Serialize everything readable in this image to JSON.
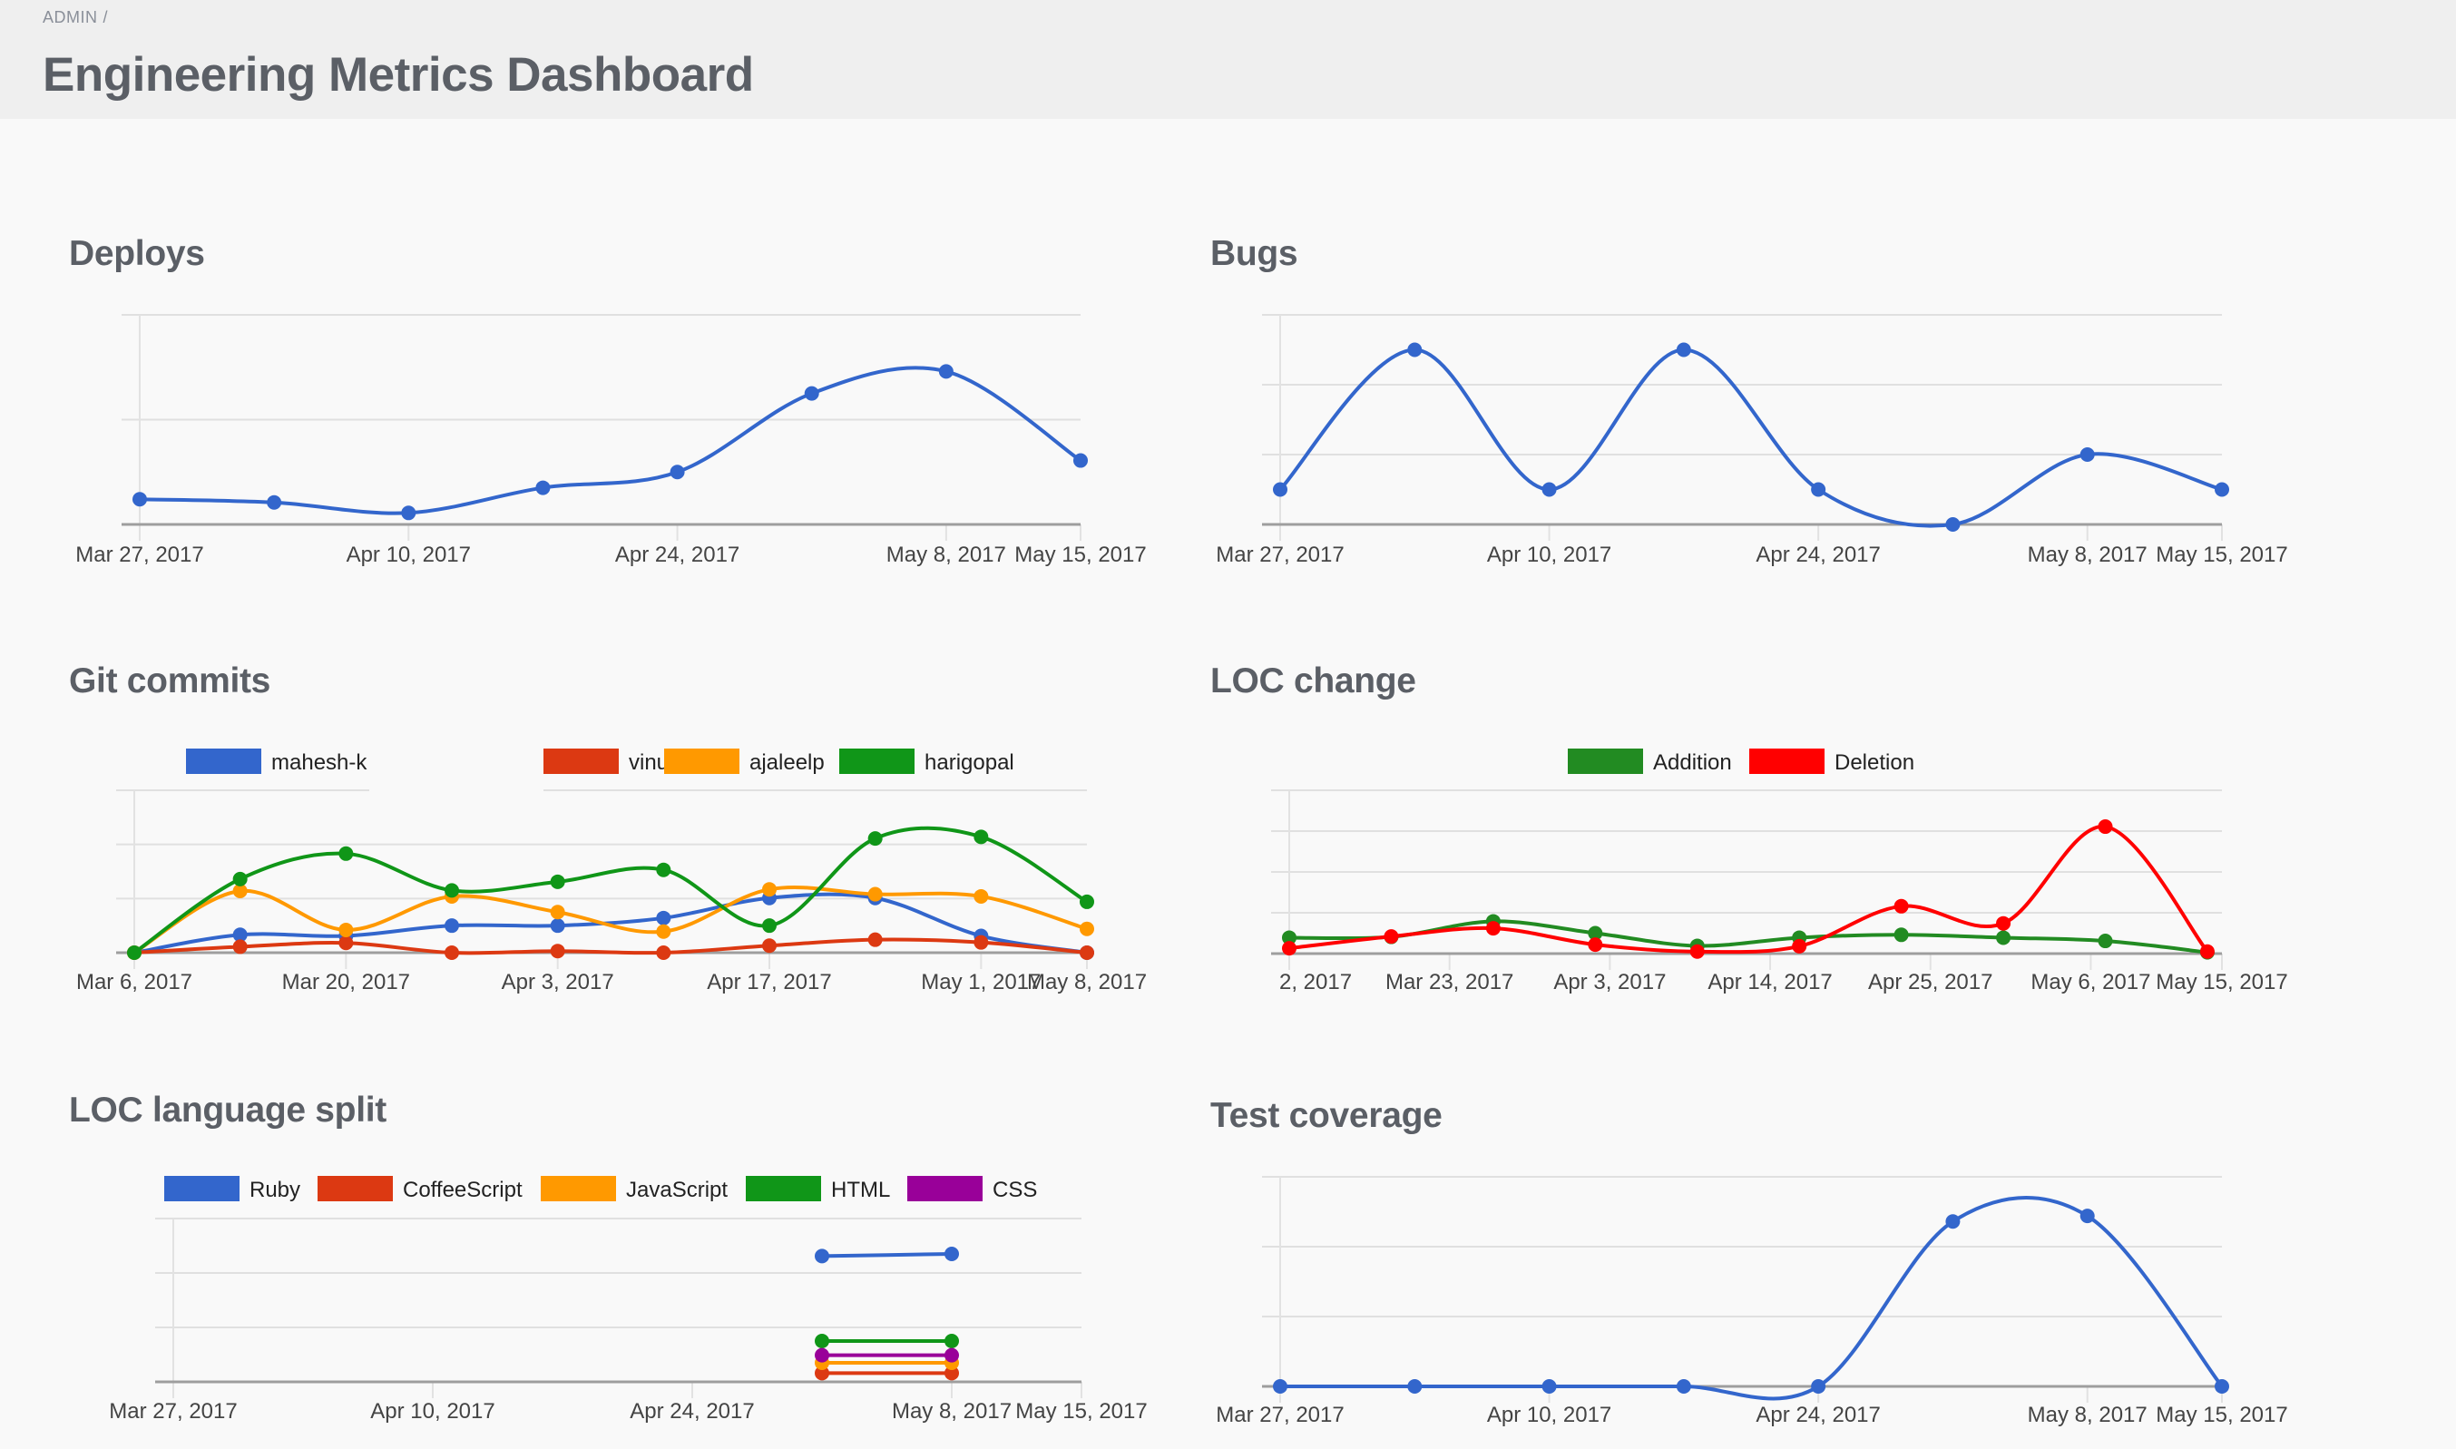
{
  "breadcrumb": {
    "items": [
      "ADMIN"
    ],
    "separator": "/"
  },
  "page_title": "Engineering Metrics Dashboard",
  "chart_data": [
    {
      "id": "deploys",
      "title": "Deploys",
      "type": "line",
      "curve": "smooth",
      "x_range": [
        "2017-03-27",
        "2017-05-15"
      ],
      "ylim": [
        0,
        2
      ],
      "ygrid_step": 1,
      "grid": true,
      "xticks": [
        {
          "date": "2017-03-27",
          "label": "Mar 27, 2017"
        },
        {
          "date": "2017-04-10",
          "label": "Apr 10, 2017"
        },
        {
          "date": "2017-04-24",
          "label": "Apr 24, 2017"
        },
        {
          "date": "2017-05-08",
          "label": "May 8, 2017"
        },
        {
          "date": "2017-05-15",
          "label": "May 15, 2017"
        }
      ],
      "x": [
        "2017-03-27",
        "2017-04-03",
        "2017-04-10",
        "2017-04-17",
        "2017-04-24",
        "2017-05-01",
        "2017-05-08",
        "2017-05-15"
      ],
      "series": [
        {
          "color": "#3366cc",
          "values": [
            0.24,
            0.21,
            0.11,
            0.35,
            0.5,
            1.25,
            1.46,
            0.61
          ]
        }
      ]
    },
    {
      "id": "bugs",
      "title": "Bugs",
      "type": "line",
      "curve": "smooth",
      "x_range": [
        "2017-03-27",
        "2017-05-15"
      ],
      "ylim": [
        0,
        6
      ],
      "ygrid_step": 2,
      "grid": true,
      "xticks": [
        {
          "date": "2017-03-27",
          "label": "Mar 27, 2017"
        },
        {
          "date": "2017-04-10",
          "label": "Apr 10, 2017"
        },
        {
          "date": "2017-04-24",
          "label": "Apr 24, 2017"
        },
        {
          "date": "2017-05-08",
          "label": "May 8, 2017"
        },
        {
          "date": "2017-05-15",
          "label": "May 15, 2017"
        }
      ],
      "x": [
        "2017-03-27",
        "2017-04-03",
        "2017-04-10",
        "2017-04-17",
        "2017-04-24",
        "2017-05-01",
        "2017-05-08",
        "2017-05-15"
      ],
      "series": [
        {
          "color": "#3366cc",
          "values": [
            1,
            5,
            1,
            5,
            1,
            0,
            2,
            1
          ]
        }
      ]
    },
    {
      "id": "git",
      "title": "Git commits",
      "type": "line",
      "curve": "smooth",
      "x_range": [
        "2017-03-06",
        "2017-05-08"
      ],
      "ylim": [
        0,
        3
      ],
      "ygrid_step": 1,
      "grid": true,
      "legend": "top",
      "xticks": [
        {
          "date": "2017-03-06",
          "label": "Mar 6, 2017"
        },
        {
          "date": "2017-03-20",
          "label": "Mar 20, 2017"
        },
        {
          "date": "2017-04-03",
          "label": "Apr 3, 2017"
        },
        {
          "date": "2017-04-17",
          "label": "Apr 17, 2017"
        },
        {
          "date": "2017-05-01",
          "label": "May 1, 2017"
        },
        {
          "date": "2017-05-08",
          "label": "May 8, 2017"
        }
      ],
      "x": [
        "2017-03-06",
        "2017-03-13",
        "2017-03-20",
        "2017-03-27",
        "2017-04-03",
        "2017-04-10",
        "2017-04-17",
        "2017-04-24",
        "2017-05-01",
        "2017-05-08"
      ],
      "series": [
        {
          "name": "mahesh-k",
          "color": "#3366cc",
          "values": [
            0,
            0.33,
            0.31,
            0.5,
            0.5,
            0.64,
            1.01,
            1.01,
            0.31,
            0
          ]
        },
        {
          "name": "vinutv",
          "color": "#dc3912",
          "values": [
            0,
            0.11,
            0.18,
            0,
            0.03,
            0,
            0.13,
            0.24,
            0.19,
            0
          ]
        },
        {
          "name": "ajaleelp",
          "color": "#ff9900",
          "values": [
            0,
            1.14,
            0.42,
            1.04,
            0.75,
            0.39,
            1.17,
            1.08,
            1.04,
            0.44
          ]
        },
        {
          "name": "harigopal",
          "color": "#109618",
          "values": [
            0,
            1.36,
            1.83,
            1.15,
            1.31,
            1.53,
            0.5,
            2.11,
            2.14,
            0.94
          ]
        }
      ]
    },
    {
      "id": "loc",
      "title": "LOC change",
      "type": "line",
      "curve": "smooth",
      "x_range": [
        "2017-03-12",
        "2017-05-15"
      ],
      "ylim": [
        0,
        4
      ],
      "ygrid_step": 1,
      "grid": true,
      "legend": "top",
      "xticks": [
        {
          "date": "2017-03-12",
          "label": "2, 2017"
        },
        {
          "date": "2017-03-23",
          "label": "Mar 23, 2017"
        },
        {
          "date": "2017-04-03",
          "label": "Apr 3, 2017"
        },
        {
          "date": "2017-04-14",
          "label": "Apr 14, 2017"
        },
        {
          "date": "2017-04-25",
          "label": "Apr 25, 2017"
        },
        {
          "date": "2017-05-06",
          "label": "May 6, 2017"
        },
        {
          "date": "2017-05-15",
          "label": "May 15, 2017"
        }
      ],
      "x": [
        "2017-03-12",
        "2017-03-19",
        "2017-03-26",
        "2017-04-02",
        "2017-04-09",
        "2017-04-16",
        "2017-04-23",
        "2017-04-30",
        "2017-05-07",
        "2017-05-14"
      ],
      "series": [
        {
          "name": "Addition",
          "color": "#228b22",
          "values": [
            0.39,
            0.41,
            0.79,
            0.5,
            0.19,
            0.39,
            0.46,
            0.39,
            0.31,
            0.03
          ]
        },
        {
          "name": "Deletion",
          "color": "#ff0000",
          "values": [
            0.13,
            0.42,
            0.62,
            0.22,
            0.05,
            0.18,
            1.16,
            0.74,
            3.11,
            0.05
          ]
        }
      ]
    },
    {
      "id": "lang",
      "title": "LOC language split",
      "type": "line",
      "curve": "smooth",
      "x_range": [
        "2017-03-27",
        "2017-05-15"
      ],
      "ylim": [
        0,
        3
      ],
      "ygrid_step": 1,
      "grid": true,
      "legend": "top",
      "xticks": [
        {
          "date": "2017-03-27",
          "label": "Mar 27, 2017"
        },
        {
          "date": "2017-04-10",
          "label": "Apr 10, 2017"
        },
        {
          "date": "2017-04-24",
          "label": "Apr 24, 2017"
        },
        {
          "date": "2017-05-08",
          "label": "May 8, 2017"
        },
        {
          "date": "2017-05-15",
          "label": "May 15, 2017"
        }
      ],
      "x": [
        "2017-05-01",
        "2017-05-08"
      ],
      "series": [
        {
          "name": "Ruby",
          "color": "#3366cc",
          "values": [
            2.31,
            2.35
          ]
        },
        {
          "name": "CoffeeScript",
          "color": "#dc3912",
          "values": [
            0.16,
            0.16
          ]
        },
        {
          "name": "JavaScript",
          "color": "#ff9900",
          "values": [
            0.35,
            0.35
          ]
        },
        {
          "name": "HTML",
          "color": "#109618",
          "values": [
            0.75,
            0.75
          ]
        },
        {
          "name": "CSS",
          "color": "#990099",
          "values": [
            0.49,
            0.49
          ]
        }
      ]
    },
    {
      "id": "test",
      "title": "Test coverage",
      "type": "line",
      "curve": "smooth",
      "x_range": [
        "2017-03-27",
        "2017-05-15"
      ],
      "ylim": [
        0,
        3
      ],
      "ygrid_step": 1,
      "grid": true,
      "xticks": [
        {
          "date": "2017-03-27",
          "label": "Mar 27, 2017"
        },
        {
          "date": "2017-04-10",
          "label": "Apr 10, 2017"
        },
        {
          "date": "2017-04-24",
          "label": "Apr 24, 2017"
        },
        {
          "date": "2017-05-08",
          "label": "May 8, 2017"
        },
        {
          "date": "2017-05-15",
          "label": "May 15, 2017"
        }
      ],
      "x": [
        "2017-03-27",
        "2017-04-03",
        "2017-04-10",
        "2017-04-17",
        "2017-04-24",
        "2017-05-01",
        "2017-05-08",
        "2017-05-15"
      ],
      "series": [
        {
          "color": "#3366cc",
          "values": [
            0,
            0,
            0,
            0,
            0,
            2.36,
            2.44,
            0
          ]
        }
      ]
    }
  ]
}
